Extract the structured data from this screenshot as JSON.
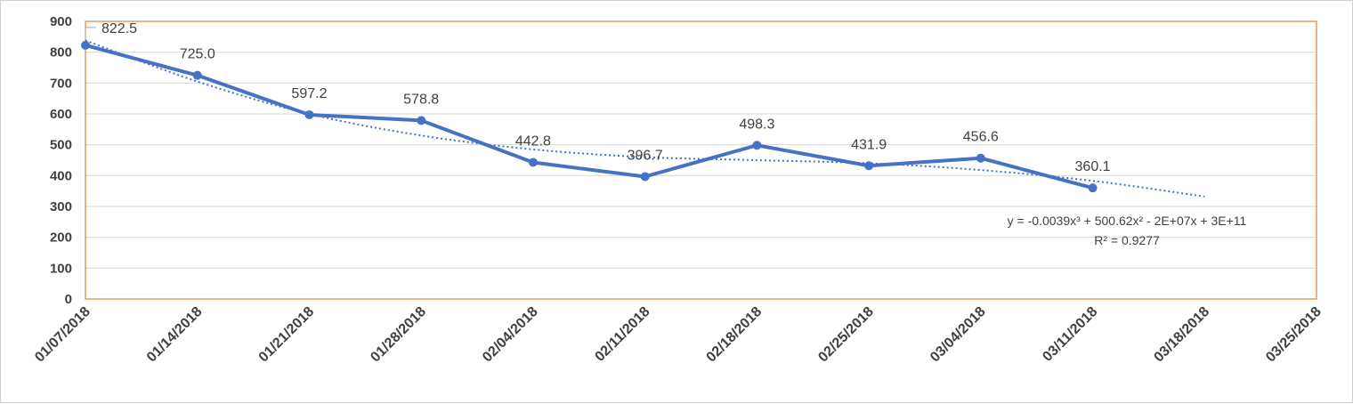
{
  "chart_data": {
    "type": "line",
    "title": "",
    "xlabel": "",
    "ylabel": "",
    "ylim": [
      0,
      900
    ],
    "y_ticks": [
      "0",
      "100",
      "200",
      "300",
      "400",
      "500",
      "600",
      "700",
      "800",
      "900"
    ],
    "x_tick_labels": [
      "01/07/2018",
      "01/14/2018",
      "01/21/2018",
      "01/28/2018",
      "02/04/2018",
      "02/11/2018",
      "02/18/2018",
      "02/25/2018",
      "03/04/2018",
      "03/11/2018",
      "03/18/2018",
      "03/25/2018"
    ],
    "grid": true,
    "legend": "none",
    "series": [
      {
        "color": "#4472c4",
        "x": [
          "01/07/2018",
          "01/14/2018",
          "01/21/2018",
          "01/28/2018",
          "02/04/2018",
          "02/11/2018",
          "02/18/2018",
          "02/25/2018",
          "03/04/2018",
          "03/11/2018"
        ],
        "values": [
          822.5,
          725.0,
          597.2,
          578.8,
          442.8,
          396.7,
          498.3,
          431.9,
          456.6,
          360.1
        ],
        "data_labels": [
          "822.5",
          "725.0",
          "597.2",
          "578.8",
          "442.8",
          "396.7",
          "498.3",
          "431.9",
          "456.6",
          "360.1"
        ]
      }
    ],
    "trendline": {
      "type": "polynomial-3",
      "style": "dotted",
      "color": "#4472c4",
      "equation": "y = -0.0039x³ + 500.62x² - 2E+07x + 3E+11",
      "r_squared": "R² = 0.9277",
      "x": [
        "01/07/2018",
        "01/14/2018",
        "01/21/2018",
        "01/28/2018",
        "02/04/2018",
        "02/11/2018",
        "02/18/2018",
        "02/25/2018",
        "03/04/2018",
        "03/11/2018",
        "03/18/2018"
      ],
      "values": [
        838,
        705,
        600,
        530,
        485,
        460,
        450,
        440,
        418,
        383,
        332
      ]
    },
    "colors": {
      "plot_border": "#ed7d31",
      "gridline": "#d9d9d9",
      "text": "#404040"
    }
  }
}
